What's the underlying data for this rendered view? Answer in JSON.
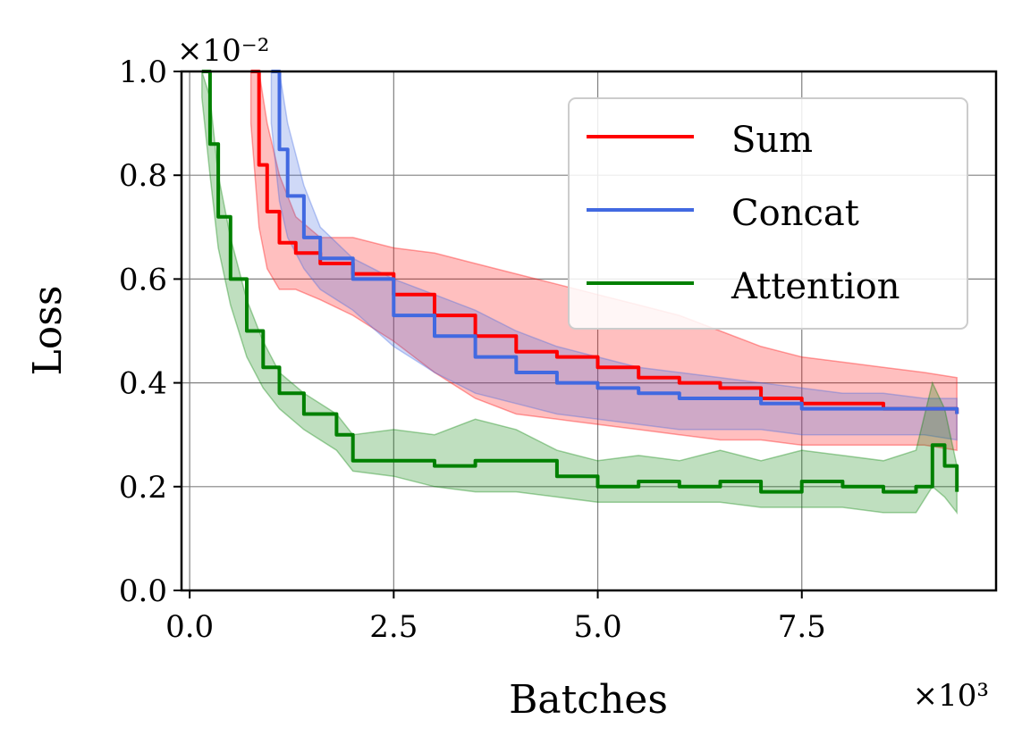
{
  "chart_data": {
    "type": "line",
    "title": "",
    "xlabel": "Batches",
    "ylabel": "Loss",
    "x_scale_label": "×10³",
    "y_scale_label": "×10⁻²",
    "xlim": [
      -0.1,
      9.88
    ],
    "ylim": [
      0.0,
      1.0
    ],
    "xticks": [
      0.0,
      2.5,
      5.0,
      7.5
    ],
    "xtick_labels": [
      "0.0",
      "2.5",
      "5.0",
      "7.5"
    ],
    "yticks": [
      0.0,
      0.2,
      0.4,
      0.6,
      0.8,
      1.0
    ],
    "ytick_labels": [
      "0.0",
      "0.2",
      "0.4",
      "0.6",
      "0.8",
      "1.0"
    ],
    "grid": true,
    "legend_position": "top-right",
    "series": [
      {
        "name": "Sum",
        "color": "#ff0000",
        "x": [
          0.75,
          0.85,
          0.95,
          1.1,
          1.3,
          1.6,
          2.0,
          2.5,
          3.0,
          3.5,
          4.0,
          4.5,
          5.0,
          5.5,
          6.0,
          6.5,
          7.0,
          7.5,
          8.0,
          8.5,
          9.0,
          9.4
        ],
        "y": [
          1.0,
          0.82,
          0.73,
          0.67,
          0.65,
          0.63,
          0.61,
          0.57,
          0.53,
          0.49,
          0.46,
          0.45,
          0.43,
          0.41,
          0.4,
          0.39,
          0.37,
          0.36,
          0.36,
          0.35,
          0.35,
          0.34
        ],
        "upper": [
          1.0,
          1.0,
          0.9,
          0.8,
          0.72,
          0.68,
          0.68,
          0.66,
          0.65,
          0.63,
          0.61,
          0.59,
          0.57,
          0.55,
          0.53,
          0.5,
          0.47,
          0.45,
          0.44,
          0.43,
          0.42,
          0.41
        ],
        "lower": [
          0.9,
          0.7,
          0.62,
          0.58,
          0.58,
          0.56,
          0.53,
          0.48,
          0.42,
          0.37,
          0.34,
          0.33,
          0.32,
          0.31,
          0.3,
          0.29,
          0.29,
          0.28,
          0.28,
          0.28,
          0.28,
          0.27
        ]
      },
      {
        "name": "Concat",
        "color": "#4169e1",
        "x": [
          1.0,
          1.1,
          1.2,
          1.4,
          1.6,
          2.0,
          2.5,
          3.0,
          3.5,
          4.0,
          4.5,
          5.0,
          5.5,
          6.0,
          6.5,
          7.0,
          7.5,
          8.0,
          8.5,
          9.0,
          9.4
        ],
        "y": [
          1.0,
          0.85,
          0.76,
          0.68,
          0.64,
          0.6,
          0.53,
          0.49,
          0.45,
          0.42,
          0.4,
          0.39,
          0.38,
          0.37,
          0.37,
          0.36,
          0.35,
          0.35,
          0.35,
          0.35,
          0.34
        ],
        "upper": [
          1.0,
          1.0,
          0.9,
          0.78,
          0.7,
          0.64,
          0.6,
          0.57,
          0.54,
          0.5,
          0.47,
          0.45,
          0.43,
          0.42,
          0.41,
          0.4,
          0.39,
          0.38,
          0.38,
          0.37,
          0.37
        ],
        "lower": [
          0.9,
          0.75,
          0.68,
          0.62,
          0.58,
          0.54,
          0.47,
          0.42,
          0.38,
          0.36,
          0.34,
          0.33,
          0.32,
          0.31,
          0.31,
          0.31,
          0.3,
          0.3,
          0.3,
          0.3,
          0.29
        ]
      },
      {
        "name": "Attention",
        "color": "#008000",
        "x": [
          0.15,
          0.25,
          0.35,
          0.5,
          0.7,
          0.9,
          1.1,
          1.4,
          1.8,
          2.0,
          2.5,
          3.0,
          3.5,
          4.0,
          4.5,
          5.0,
          5.5,
          6.0,
          6.5,
          7.0,
          7.5,
          8.0,
          8.5,
          8.9,
          9.1,
          9.25,
          9.4
        ],
        "y": [
          1.0,
          0.86,
          0.72,
          0.6,
          0.5,
          0.43,
          0.38,
          0.34,
          0.3,
          0.25,
          0.25,
          0.24,
          0.25,
          0.25,
          0.22,
          0.2,
          0.21,
          0.2,
          0.21,
          0.19,
          0.21,
          0.2,
          0.19,
          0.2,
          0.28,
          0.24,
          0.19
        ],
        "upper": [
          1.0,
          0.95,
          0.8,
          0.68,
          0.56,
          0.48,
          0.42,
          0.38,
          0.34,
          0.3,
          0.31,
          0.3,
          0.33,
          0.31,
          0.27,
          0.25,
          0.26,
          0.25,
          0.27,
          0.25,
          0.27,
          0.26,
          0.25,
          0.27,
          0.4,
          0.35,
          0.24
        ],
        "lower": [
          0.95,
          0.8,
          0.66,
          0.55,
          0.45,
          0.39,
          0.35,
          0.31,
          0.27,
          0.23,
          0.22,
          0.2,
          0.19,
          0.19,
          0.18,
          0.17,
          0.17,
          0.17,
          0.17,
          0.16,
          0.16,
          0.16,
          0.15,
          0.15,
          0.2,
          0.18,
          0.15
        ]
      }
    ]
  }
}
